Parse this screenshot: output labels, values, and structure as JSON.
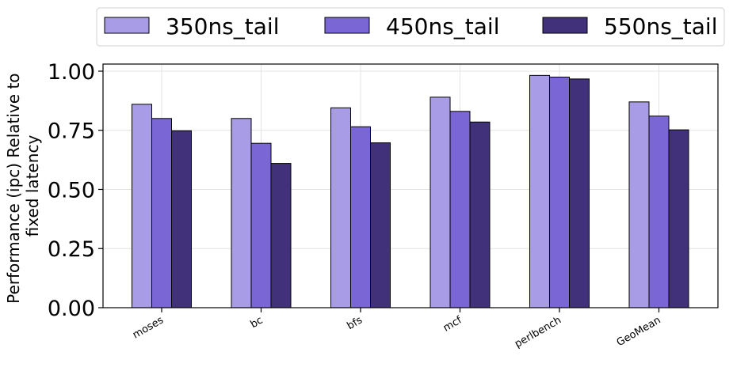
{
  "chart_data": {
    "type": "bar",
    "title": "",
    "xlabel": "",
    "ylabel": "Performance (ipc) Relative to fixed latency",
    "ylabel_lines": [
      "Performance (ipc) Relative to",
      "fixed latency"
    ],
    "categories": [
      "moses",
      "bc",
      "bfs",
      "mcf",
      "perlbench",
      "GeoMean"
    ],
    "series": [
      {
        "name": "350ns_tail",
        "color": "#a89ce6",
        "values": [
          0.86,
          0.8,
          0.845,
          0.89,
          0.982,
          0.87
        ]
      },
      {
        "name": "450ns_tail",
        "color": "#7b66d6",
        "values": [
          0.8,
          0.695,
          0.765,
          0.83,
          0.975,
          0.81
        ]
      },
      {
        "name": "550ns_tail",
        "color": "#40317a",
        "values": [
          0.748,
          0.61,
          0.697,
          0.785,
          0.967,
          0.752
        ]
      }
    ],
    "ylim": [
      0,
      1.03
    ],
    "yticks": [
      0,
      0.25,
      0.5,
      0.75,
      1.0
    ],
    "ytick_labels": [
      "0.00",
      "0.25",
      "0.50",
      "0.75",
      "1.00"
    ],
    "grid": true,
    "legend_position": "top-center"
  }
}
